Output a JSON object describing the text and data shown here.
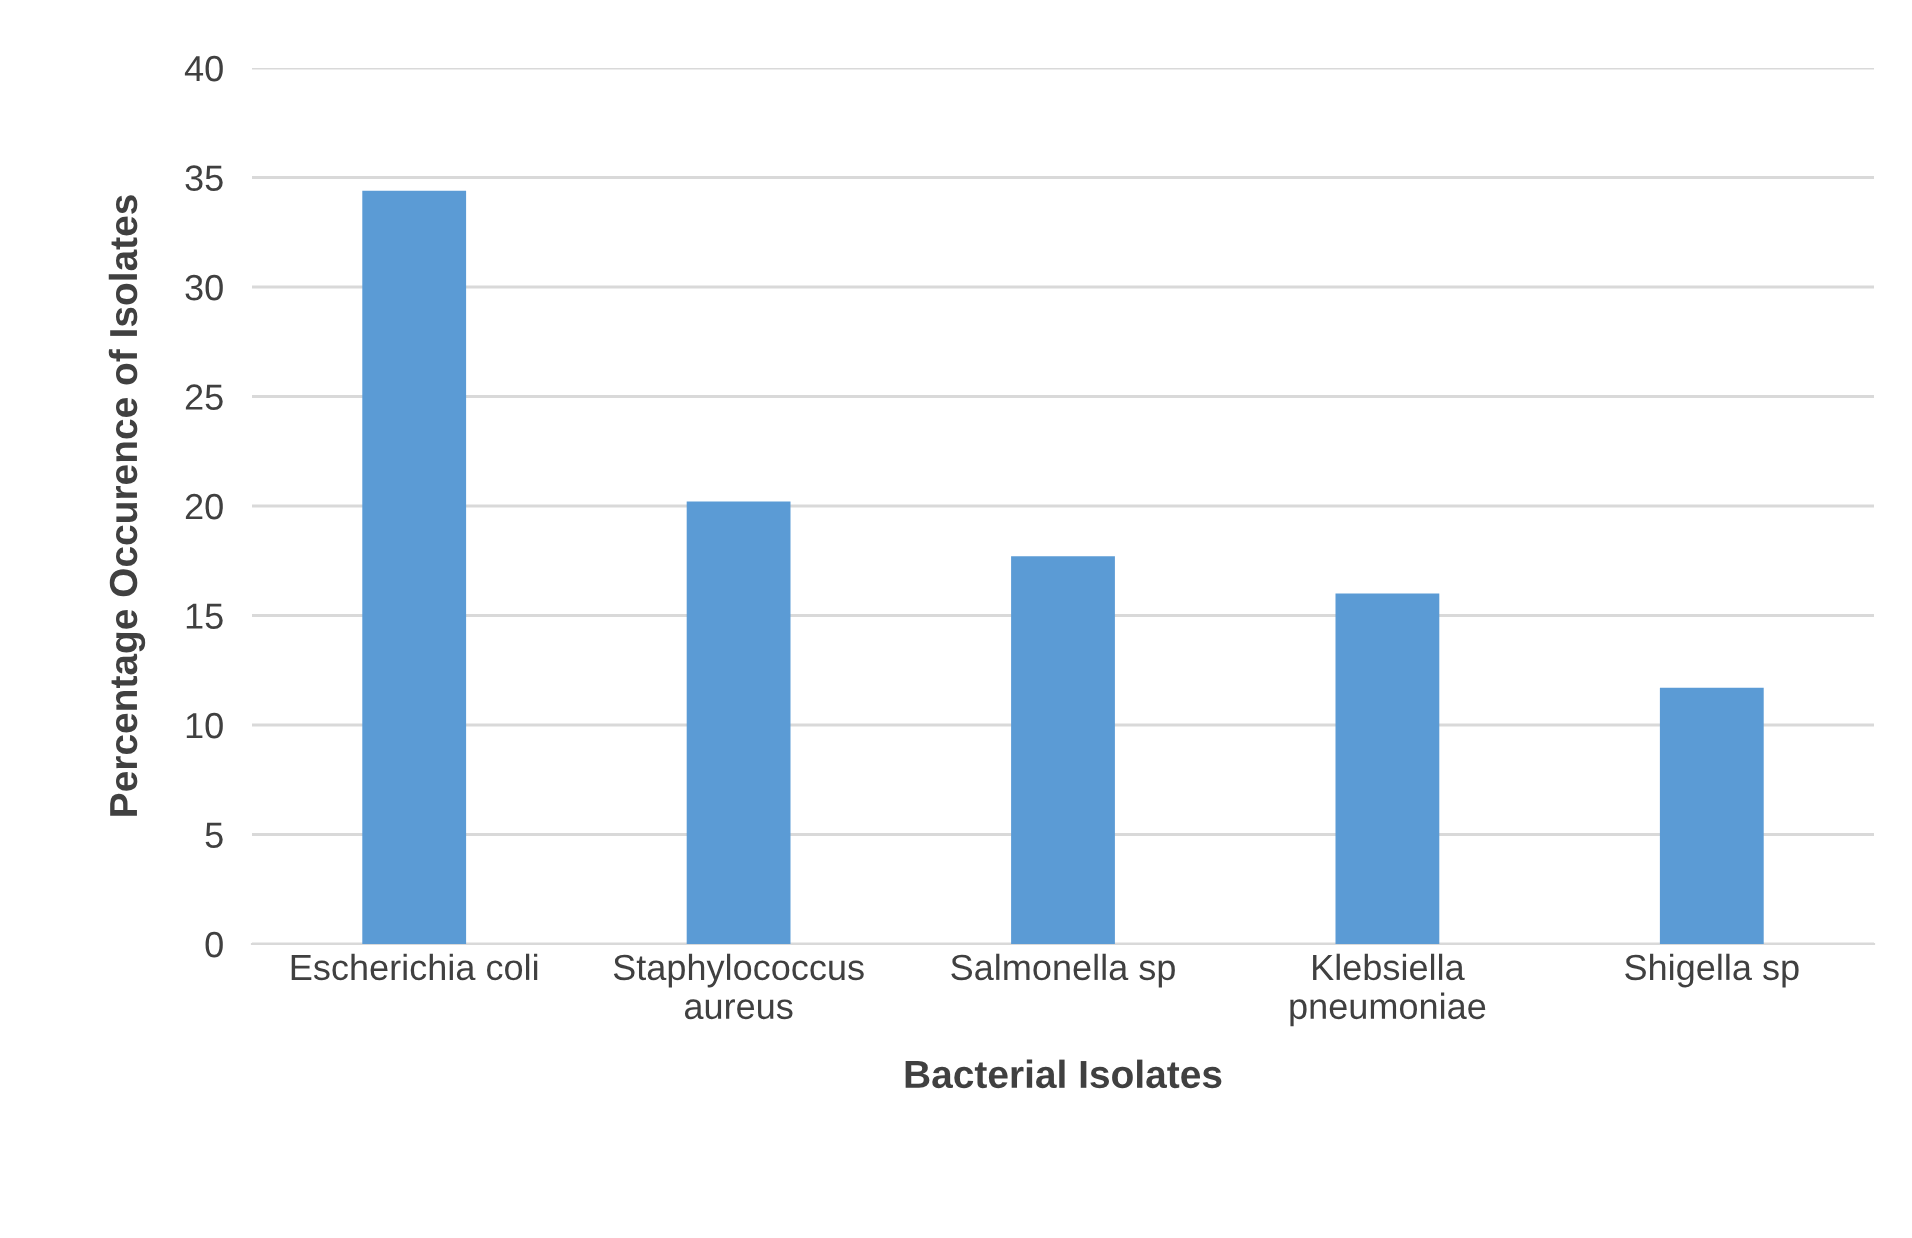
{
  "chart_data": {
    "type": "bar",
    "xlabel": "Bacterial Isolates",
    "ylabel": "Percentage Occurence of Isolates",
    "categories": [
      "Escherichia coli",
      "Staphylococcus aureus",
      "Salmonella sp",
      "Klebsiella pneumoniae",
      "Shigella sp"
    ],
    "values": [
      34.4,
      20.2,
      17.7,
      16.0,
      11.7
    ],
    "color": "#5b9bd5",
    "ylim": [
      0,
      40
    ],
    "yticks": [
      0,
      5,
      10,
      15,
      20,
      25,
      30,
      35,
      40
    ],
    "grid": "y",
    "legend": false
  }
}
